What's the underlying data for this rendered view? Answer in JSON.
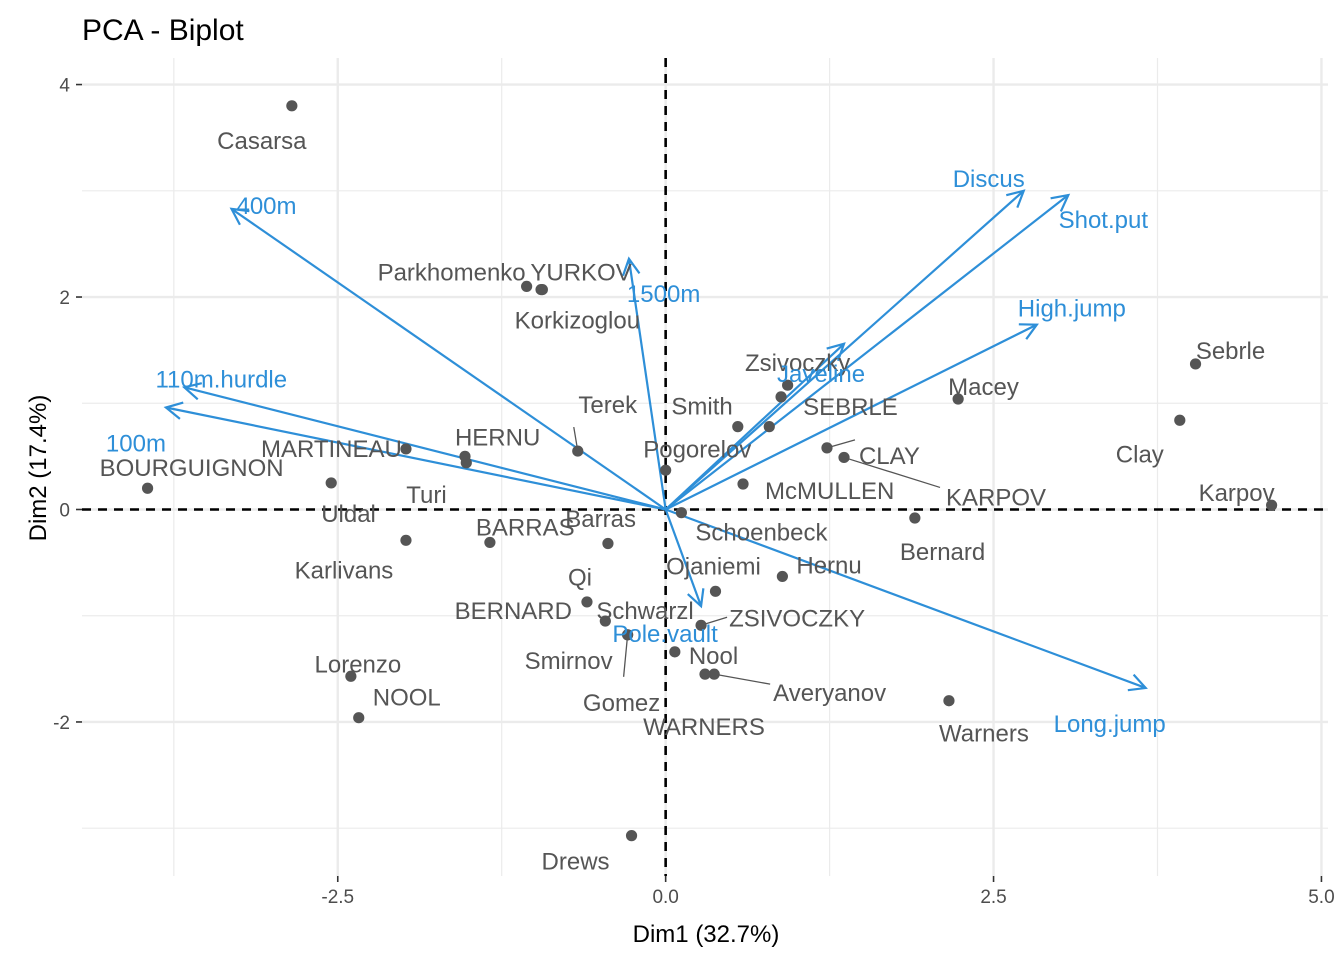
{
  "chart_data": {
    "type": "scatter",
    "title": "PCA - Biplot",
    "xlabel": "Dim1 (32.7%)",
    "ylabel": "Dim2 (17.4%)",
    "xlim": [
      -4.45,
      5.05
    ],
    "ylim": [
      -3.45,
      4.25
    ],
    "xticks": [
      -2.5,
      0.0,
      2.5,
      5.0
    ],
    "xtick_labels": [
      "-2.5",
      "0.0",
      "2.5",
      "5.0"
    ],
    "yticks": [
      -2,
      0,
      2,
      4
    ],
    "ytick_labels": [
      "-2",
      "0",
      "2",
      "4"
    ],
    "grid": true,
    "colors": {
      "individuals": "#555555",
      "variables": "#2e8fd8",
      "grid": "#ebebeb"
    },
    "individuals": [
      {
        "name": "Casarsa",
        "x": -2.85,
        "y": 3.8
      },
      {
        "name": "Parkhomenko",
        "x": -1.06,
        "y": 2.1
      },
      {
        "name": "YURKOV",
        "x": -0.95,
        "y": 2.07
      },
      {
        "name": "Korkizoglou",
        "x": -0.94,
        "y": 2.07
      },
      {
        "name": "Zsivoczky",
        "x": 0.93,
        "y": 1.17
      },
      {
        "name": "Smith",
        "x": 0.55,
        "y": 0.78
      },
      {
        "name": "SEBRLE",
        "x": 0.88,
        "y": 1.06
      },
      {
        "name": "Macey",
        "x": 2.23,
        "y": 1.04
      },
      {
        "name": "Sebrle",
        "x": 4.04,
        "y": 1.37
      },
      {
        "name": "Clay",
        "x": 3.92,
        "y": 0.84
      },
      {
        "name": "Karpov",
        "x": 4.62,
        "y": 0.04
      },
      {
        "name": "Terek",
        "x": -0.67,
        "y": 0.55
      },
      {
        "name": "Pogorelov",
        "x": 0.79,
        "y": 0.78
      },
      {
        "name": "CLAY",
        "x": 1.23,
        "y": 0.58
      },
      {
        "name": "KARPOV",
        "x": 1.36,
        "y": 0.49
      },
      {
        "name": "McMULLEN",
        "x": 0.59,
        "y": 0.24
      },
      {
        "name": "Barras",
        "x": 0.0,
        "y": 0.37
      },
      {
        "name": "MARTINEAU",
        "x": -1.98,
        "y": 0.57
      },
      {
        "name": "HERNU",
        "x": -1.53,
        "y": 0.5
      },
      {
        "name": "Turi",
        "x": -1.52,
        "y": 0.44
      },
      {
        "name": "BOURGUIGNON",
        "x": -3.95,
        "y": 0.2
      },
      {
        "name": "Uldal",
        "x": -2.55,
        "y": 0.25
      },
      {
        "name": "Schoenbeck",
        "x": 0.12,
        "y": -0.03
      },
      {
        "name": "Bernard",
        "x": 1.9,
        "y": -0.08
      },
      {
        "name": "BARRAS",
        "x": -1.34,
        "y": -0.31
      },
      {
        "name": "Qi",
        "x": -0.44,
        "y": -0.32
      },
      {
        "name": "Karlivans",
        "x": -1.98,
        "y": -0.29
      },
      {
        "name": "Ojaniemi",
        "x": 0.38,
        "y": -0.77
      },
      {
        "name": "Hernu",
        "x": 0.89,
        "y": -0.63
      },
      {
        "name": "BERNARD",
        "x": -0.6,
        "y": -0.87
      },
      {
        "name": "Schwarzl",
        "x": -0.46,
        "y": -1.05
      },
      {
        "name": "ZSIVOCZKY",
        "x": 0.27,
        "y": -1.09
      },
      {
        "name": "Smirnov",
        "x": -0.29,
        "y": -1.18
      },
      {
        "name": "Gomez",
        "x": -0.29,
        "y": -1.18
      },
      {
        "name": "Nool",
        "x": 0.07,
        "y": -1.34
      },
      {
        "name": "Averyanov",
        "x": 0.37,
        "y": -1.55
      },
      {
        "name": "WARNERS",
        "x": 0.3,
        "y": -1.55
      },
      {
        "name": "Lorenzo",
        "x": -2.4,
        "y": -1.57
      },
      {
        "name": "NOOL",
        "x": -2.34,
        "y": -1.96
      },
      {
        "name": "Warners",
        "x": 2.16,
        "y": -1.8
      },
      {
        "name": "Drews",
        "x": -0.26,
        "y": -3.07
      }
    ],
    "variables": [
      {
        "name": "100m",
        "x": -3.81,
        "y": 0.96
      },
      {
        "name": "Long.jump",
        "x": 3.66,
        "y": -1.68
      },
      {
        "name": "Shot.put",
        "x": 3.07,
        "y": 2.96
      },
      {
        "name": "High.jump",
        "x": 2.83,
        "y": 1.74
      },
      {
        "name": "400m",
        "x": -3.31,
        "y": 2.83
      },
      {
        "name": "110m.hurdle",
        "x": -3.67,
        "y": 1.15
      },
      {
        "name": "Discus",
        "x": 2.73,
        "y": 3.0
      },
      {
        "name": "Pole.vault",
        "x": 0.27,
        "y": -0.91
      },
      {
        "name": "Javeline",
        "x": 1.36,
        "y": 1.56
      },
      {
        "name": "1500m",
        "x": -0.28,
        "y": 2.36
      }
    ]
  }
}
